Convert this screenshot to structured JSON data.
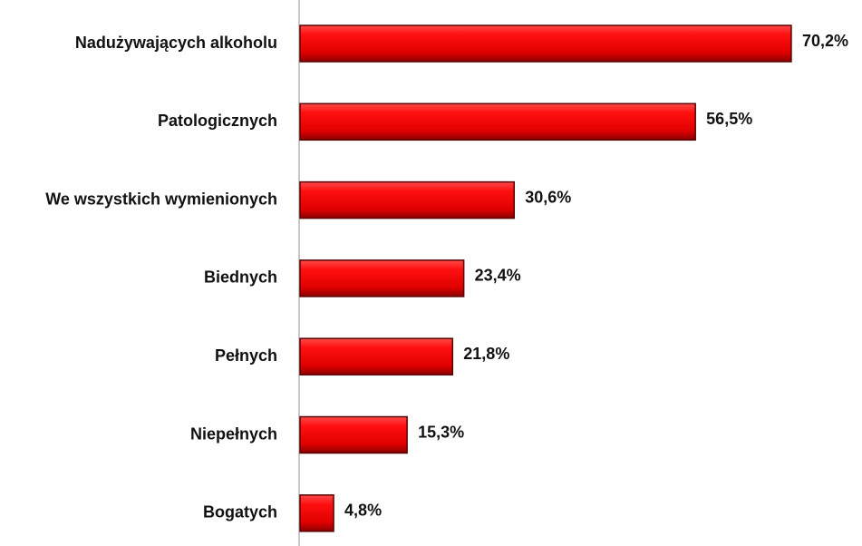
{
  "chart_data": {
    "type": "barh",
    "categories": [
      "Nadużywających alkoholu",
      "Patologicznych",
      "We wszystkich wymienionych",
      "Biednych",
      "Pełnych",
      "Niepełnych",
      "Bogatych"
    ],
    "values": [
      70.2,
      56.5,
      30.6,
      23.4,
      21.8,
      15.3,
      4.8
    ],
    "value_labels": [
      "70,2%",
      "56,5%",
      "30,6%",
      "23,4%",
      "21,8%",
      "15,3%",
      "4,8%"
    ],
    "color": "#ee0000"
  }
}
